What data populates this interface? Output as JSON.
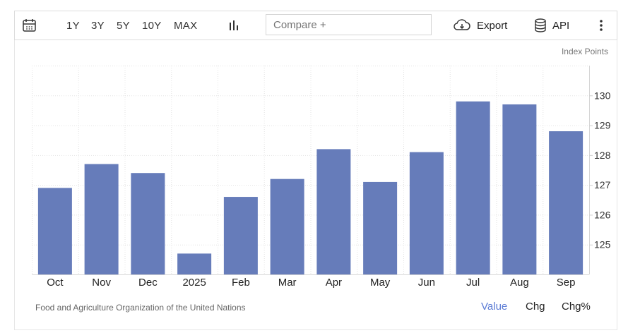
{
  "toolbar": {
    "ranges": [
      "1Y",
      "3Y",
      "5Y",
      "10Y",
      "MAX"
    ],
    "compare_placeholder": "Compare +",
    "export_label": "Export",
    "api_label": "API"
  },
  "units_label": "Index Points",
  "source_label": "Food and Agriculture Organization of the United Nations",
  "tabs": [
    "Value",
    "Chg",
    "Chg%"
  ],
  "colors": {
    "bar": "#667cba",
    "active_tab": "#5b7bd5",
    "grid": "#e3e3e3"
  },
  "chart_data": {
    "type": "bar",
    "categories": [
      "Oct",
      "Nov",
      "Dec",
      "2025",
      "Feb",
      "Mar",
      "Apr",
      "May",
      "Jun",
      "Jul",
      "Aug",
      "Sep"
    ],
    "values": [
      126.9,
      127.7,
      127.4,
      124.7,
      126.6,
      127.2,
      128.2,
      127.1,
      128.1,
      129.8,
      129.7,
      128.8
    ],
    "yticks": [
      125,
      126,
      127,
      128,
      129,
      130
    ],
    "ylim": [
      124,
      131
    ],
    "grid": true
  }
}
